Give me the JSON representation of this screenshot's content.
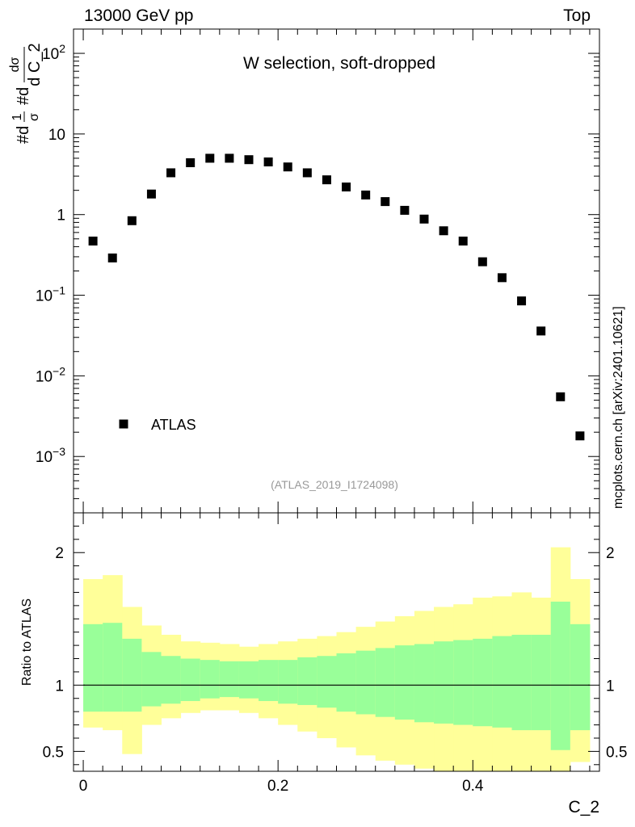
{
  "header": {
    "left": "13000 GeV pp",
    "right": "Top"
  },
  "side_label": "mcplots.cern.ch [arXiv:2401.10621]",
  "chart_data": {
    "type": "scatter",
    "title": "W selection, soft-dropped",
    "ref_id": "(ATLAS_2019_I1724098)",
    "xlabel": "C_2",
    "ylabel": "#d1/σ #d dσ / d C_2",
    "ylabel_parts": {
      "frac1_num": "1",
      "frac1_den": "σ",
      "frac2_num": "dσ",
      "frac2_den": "d C_2",
      "hash1": "#d",
      "hash2": "#d"
    },
    "ratio_ylabel": "Ratio to ATLAS",
    "legend": [
      {
        "name": "ATLAS",
        "marker": "square",
        "color": "#000000"
      }
    ],
    "xlim": [
      -0.01,
      0.53
    ],
    "ylim_log": [
      0.0002,
      200
    ],
    "x_ticks": [
      {
        "v": 0,
        "label": "0"
      },
      {
        "v": 0.2,
        "label": "0.2"
      },
      {
        "v": 0.4,
        "label": "0.4"
      }
    ],
    "y_ticks": [
      {
        "v": 100,
        "base": "10",
        "exp": "2"
      },
      {
        "v": 10,
        "base": "10",
        "exp": ""
      },
      {
        "v": 1,
        "base": "1",
        "exp": ""
      },
      {
        "v": 0.1,
        "base": "10",
        "exp": "−1"
      },
      {
        "v": 0.01,
        "base": "10",
        "exp": "−2"
      },
      {
        "v": 0.001,
        "base": "10",
        "exp": "−3"
      }
    ],
    "ratio_ylim": [
      0.35,
      2.3
    ],
    "ratio_ticks": [
      {
        "v": 2,
        "label": "2"
      },
      {
        "v": 1,
        "label": "1"
      },
      {
        "v": 0.5,
        "label": "0.5"
      }
    ],
    "bin_edges": [
      0,
      0.02,
      0.04,
      0.06,
      0.08,
      0.1,
      0.12,
      0.14,
      0.16,
      0.18,
      0.2,
      0.22,
      0.24,
      0.26,
      0.28,
      0.3,
      0.32,
      0.34,
      0.36,
      0.38,
      0.4,
      0.42,
      0.44,
      0.46,
      0.48,
      0.5,
      0.52
    ],
    "x": [
      0.01,
      0.03,
      0.05,
      0.07,
      0.09,
      0.11,
      0.13,
      0.15,
      0.17,
      0.19,
      0.21,
      0.23,
      0.25,
      0.27,
      0.29,
      0.31,
      0.33,
      0.35,
      0.37,
      0.39,
      0.41,
      0.43,
      0.45,
      0.47,
      0.49,
      0.51
    ],
    "values": [
      0.47,
      0.29,
      0.84,
      1.8,
      3.3,
      4.4,
      5.0,
      5.0,
      4.8,
      4.5,
      3.9,
      3.3,
      2.7,
      2.2,
      1.75,
      1.45,
      1.13,
      0.88,
      0.63,
      0.47,
      0.26,
      0.165,
      0.085,
      0.036,
      0.0055,
      0.0018
    ],
    "ratio_bands": {
      "yellow_upper": [
        1.8,
        1.83,
        1.59,
        1.45,
        1.38,
        1.33,
        1.32,
        1.31,
        1.29,
        1.31,
        1.33,
        1.35,
        1.37,
        1.4,
        1.44,
        1.48,
        1.52,
        1.56,
        1.59,
        1.61,
        1.66,
        1.67,
        1.7,
        1.66,
        2.04,
        1.8
      ],
      "yellow_lower": [
        0.68,
        0.66,
        0.48,
        0.7,
        0.75,
        0.79,
        0.81,
        0.81,
        0.79,
        0.75,
        0.7,
        0.65,
        0.6,
        0.53,
        0.47,
        0.43,
        0.4,
        0.37,
        0.35,
        0.35,
        0.34,
        0.33,
        0.32,
        0.33,
        0.35,
        0.42
      ],
      "green_upper": [
        1.46,
        1.47,
        1.35,
        1.25,
        1.22,
        1.2,
        1.19,
        1.18,
        1.18,
        1.19,
        1.19,
        1.21,
        1.22,
        1.24,
        1.26,
        1.28,
        1.3,
        1.31,
        1.33,
        1.34,
        1.35,
        1.37,
        1.38,
        1.38,
        1.63,
        1.46
      ],
      "green_lower": [
        0.8,
        0.8,
        0.8,
        0.84,
        0.86,
        0.88,
        0.9,
        0.91,
        0.9,
        0.88,
        0.86,
        0.85,
        0.83,
        0.8,
        0.78,
        0.76,
        0.74,
        0.72,
        0.71,
        0.7,
        0.69,
        0.68,
        0.66,
        0.66,
        0.51,
        0.66
      ]
    },
    "colors": {
      "yellow_band": "#ffff99",
      "green_band": "#99ff99",
      "marker": "#000000",
      "ref_id_text": "#999999"
    }
  }
}
